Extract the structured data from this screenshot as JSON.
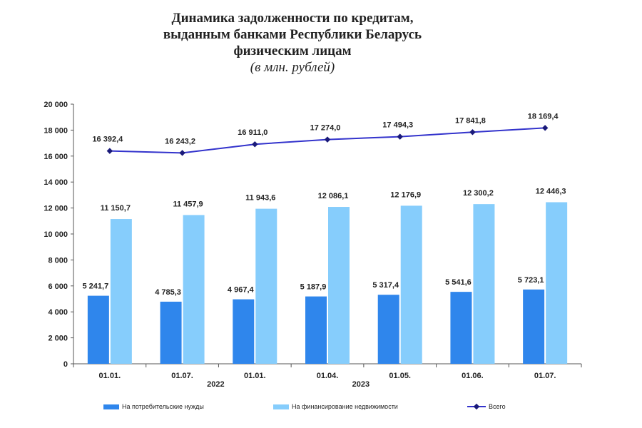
{
  "title": {
    "line1": "Динамика задолженности по кредитам,",
    "line2": "выданным банками Республики Беларусь",
    "line3": "физическим лицам",
    "subtitle": "(в млн. рублей)"
  },
  "colors": {
    "consumer": "#2f86ec",
    "realestate": "#86cdfc",
    "total": "#3333cc",
    "marker": "#1a1a7a"
  },
  "chart_data": {
    "type": "bar+line",
    "categories": [
      "01.01.",
      "01.07.",
      "01.01.",
      "01.04.",
      "01.05.",
      "01.06.",
      "01.07."
    ],
    "year_labels": [
      {
        "label": "2022",
        "after_index": 1
      },
      {
        "label": "2023",
        "after_index": 3
      }
    ],
    "series": [
      {
        "name": "На потребительские нужды",
        "kind": "bar",
        "values": [
          5241.7,
          4785.3,
          4967.4,
          5187.9,
          5317.4,
          5541.6,
          5723.1
        ],
        "labels": [
          "5 241,7",
          "4 785,3",
          "4 967,4",
          "5 187,9",
          "5 317,4",
          "5 541,6",
          "5 723,1"
        ]
      },
      {
        "name": "На финансирование недвижимости",
        "kind": "bar",
        "values": [
          11150.7,
          11457.9,
          11943.6,
          12086.1,
          12176.9,
          12300.2,
          12446.3
        ],
        "labels": [
          "11 150,7",
          "11 457,9",
          "11 943,6",
          "12 086,1",
          "12 176,9",
          "12 300,2",
          "12 446,3"
        ]
      },
      {
        "name": "Всего",
        "kind": "line",
        "values": [
          16392.4,
          16243.2,
          16911.0,
          17274.0,
          17494.3,
          17841.8,
          18169.4
        ],
        "labels": [
          "16 392,4",
          "16 243,2",
          "16 911,0",
          "17 274,0",
          "17 494,3",
          "17 841,8",
          "18 169,4"
        ]
      }
    ],
    "ylim": [
      0,
      20000
    ],
    "yticks": [
      0,
      2000,
      4000,
      6000,
      8000,
      10000,
      12000,
      14000,
      16000,
      18000,
      20000
    ],
    "ytick_labels": [
      "0",
      "2 000",
      "4 000",
      "6 000",
      "8 000",
      "10 000",
      "12 000",
      "14 000",
      "16 000",
      "18 000",
      "20 000"
    ],
    "grid": false,
    "legend_position": "bottom"
  },
  "legend": {
    "consumer": "На потребительские нужды",
    "realestate": "На финансирование недвижимости",
    "total": "Всего"
  }
}
